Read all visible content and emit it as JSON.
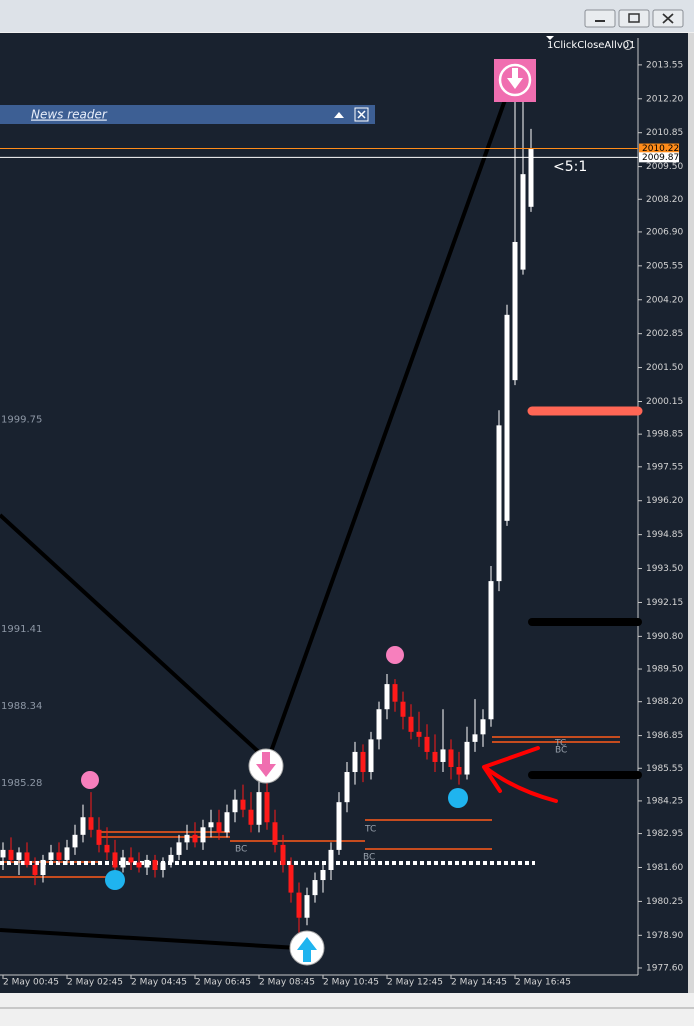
{
  "window": {
    "indicator": "1ClickCloseAllv01",
    "news_reader": "News reader",
    "ratio": "<5:1",
    "level_tags": [
      "BC",
      "TC",
      "BC",
      "TC",
      "BC"
    ]
  },
  "chart_data": {
    "type": "candlestick",
    "categories": [
      "2 May 00:45",
      null,
      null,
      null,
      null,
      null,
      null,
      null,
      "2 May 02:45",
      null,
      null,
      null,
      null,
      null,
      null,
      null,
      "2 May 04:45",
      null,
      null,
      null,
      null,
      null,
      null,
      null,
      "2 May 06:45",
      null,
      null,
      null,
      null,
      null,
      null,
      null,
      "2 May 08:45",
      null,
      null,
      null,
      null,
      null,
      null,
      null,
      "2 May 10:45",
      null,
      null,
      null,
      null,
      null,
      null,
      null,
      "2 May 12:45",
      null,
      null,
      null,
      null,
      null,
      null,
      null,
      "2 May 14:45",
      null,
      null,
      null,
      null,
      null,
      null,
      null,
      "2 May 16:45",
      null,
      null
    ],
    "ohlc": [
      [
        1982.0,
        1982.6,
        1981.5,
        1982.3
      ],
      [
        1982.3,
        1982.8,
        1981.8,
        1981.9
      ],
      [
        1981.9,
        1982.4,
        1981.3,
        1982.2
      ],
      [
        1982.2,
        1982.6,
        1981.6,
        1981.7
      ],
      [
        1981.7,
        1982.0,
        1980.9,
        1981.3
      ],
      [
        1981.3,
        1982.1,
        1981.0,
        1981.9
      ],
      [
        1981.9,
        1982.5,
        1981.7,
        1982.2
      ],
      [
        1982.2,
        1982.6,
        1981.8,
        1981.9
      ],
      [
        1981.9,
        1982.7,
        1981.7,
        1982.4
      ],
      [
        1982.4,
        1983.3,
        1982.1,
        1982.9
      ],
      [
        1982.9,
        1984.1,
        1982.6,
        1983.6
      ],
      [
        1983.6,
        1984.6,
        1982.8,
        1983.1
      ],
      [
        1983.1,
        1983.6,
        1982.2,
        1982.5
      ],
      [
        1982.5,
        1983.2,
        1981.9,
        1982.2
      ],
      [
        1982.2,
        1982.7,
        1981.2,
        1981.6
      ],
      [
        1981.6,
        1982.3,
        1981.4,
        1982.0
      ],
      [
        1982.0,
        1982.4,
        1981.5,
        1981.8
      ],
      [
        1981.8,
        1982.2,
        1981.4,
        1981.6
      ],
      [
        1981.6,
        1982.1,
        1981.3,
        1981.9
      ],
      [
        1981.9,
        1982.1,
        1981.2,
        1981.5
      ],
      [
        1981.5,
        1982.0,
        1981.2,
        1981.8
      ],
      [
        1981.8,
        1982.4,
        1981.6,
        1982.1
      ],
      [
        1982.1,
        1982.9,
        1981.9,
        1982.6
      ],
      [
        1982.6,
        1983.3,
        1982.3,
        1982.9
      ],
      [
        1982.9,
        1983.4,
        1982.4,
        1982.6
      ],
      [
        1982.6,
        1983.5,
        1982.3,
        1983.2
      ],
      [
        1983.2,
        1983.9,
        1982.8,
        1983.4
      ],
      [
        1983.4,
        1983.9,
        1982.7,
        1983.0
      ],
      [
        1983.0,
        1984.1,
        1982.8,
        1983.8
      ],
      [
        1983.8,
        1984.7,
        1983.4,
        1984.3
      ],
      [
        1984.3,
        1984.9,
        1983.6,
        1983.9
      ],
      [
        1983.9,
        1984.6,
        1983.0,
        1983.3
      ],
      [
        1983.3,
        1985.6,
        1983.0,
        1984.6
      ],
      [
        1984.6,
        1985.0,
        1983.1,
        1983.4
      ],
      [
        1983.4,
        1983.9,
        1982.2,
        1982.5
      ],
      [
        1982.5,
        1982.9,
        1981.4,
        1981.7
      ],
      [
        1981.7,
        1982.0,
        1980.2,
        1980.6
      ],
      [
        1980.6,
        1981.0,
        1978.8,
        1979.6
      ],
      [
        1979.6,
        1980.8,
        1979.3,
        1980.5
      ],
      [
        1980.5,
        1981.4,
        1980.2,
        1981.1
      ],
      [
        1981.1,
        1981.8,
        1980.6,
        1981.5
      ],
      [
        1981.5,
        1982.6,
        1981.1,
        1982.3
      ],
      [
        1982.3,
        1984.6,
        1982.1,
        1984.2
      ],
      [
        1984.2,
        1985.8,
        1983.8,
        1985.4
      ],
      [
        1985.4,
        1986.6,
        1984.9,
        1986.2
      ],
      [
        1986.2,
        1986.5,
        1985.0,
        1985.4
      ],
      [
        1985.4,
        1987.0,
        1985.1,
        1986.7
      ],
      [
        1986.7,
        1988.2,
        1986.3,
        1987.9
      ],
      [
        1987.9,
        1989.3,
        1987.5,
        1988.9
      ],
      [
        1988.9,
        1989.1,
        1987.8,
        1988.2
      ],
      [
        1988.2,
        1988.6,
        1987.1,
        1987.6
      ],
      [
        1987.6,
        1988.1,
        1986.7,
        1987.0
      ],
      [
        1987.0,
        1987.8,
        1986.4,
        1986.8
      ],
      [
        1986.8,
        1987.3,
        1985.9,
        1986.2
      ],
      [
        1986.2,
        1986.9,
        1985.4,
        1985.8
      ],
      [
        1985.8,
        1987.9,
        1985.4,
        1986.3
      ],
      [
        1986.3,
        1986.7,
        1985.1,
        1985.6
      ],
      [
        1985.6,
        1986.2,
        1984.9,
        1985.3
      ],
      [
        1985.3,
        1987.2,
        1985.1,
        1986.6
      ],
      [
        1986.6,
        1988.3,
        1986.2,
        1986.9
      ],
      [
        1986.9,
        1987.9,
        1986.4,
        1987.5
      ],
      [
        1987.5,
        1993.6,
        1987.2,
        1993.0
      ],
      [
        1993.0,
        1999.8,
        1992.6,
        1999.2
      ],
      [
        1995.4,
        2004.0,
        1995.2,
        2003.6
      ],
      [
        2001.0,
        2012.1,
        2000.8,
        2006.5
      ],
      [
        2005.4,
        2012.1,
        2005.2,
        2009.2
      ],
      [
        2007.9,
        2011.0,
        2007.7,
        2010.2
      ]
    ],
    "up_color": "#ffffff",
    "down_color": "#ff1a1a",
    "ylim": [
      1977.32,
      2014.62
    ],
    "yticks": [
      2013.55,
      {
        "value": 2012.2,
        "label": "2012.20"
      },
      2010.85,
      {
        "value": 2009.5,
        "label": "2009.50"
      },
      {
        "value": 2008.2,
        "label": "2008.20"
      },
      {
        "value": 2006.9,
        "label": "2006.90"
      },
      2005.55,
      {
        "value": 2004.2,
        "label": "2004.20"
      },
      2002.85,
      {
        "value": 2001.5,
        "label": "2001.50"
      },
      2000.15,
      1998.85,
      1997.55,
      {
        "value": 1996.2,
        "label": "1996.20"
      },
      1994.85,
      {
        "value": 1993.5,
        "label": "1993.50"
      },
      1992.15,
      {
        "value": 1990.8,
        "label": "1990.80"
      },
      {
        "value": 1989.5,
        "label": "1989.50"
      },
      {
        "value": 1988.2,
        "label": "1988.20"
      },
      1986.85,
      1985.55,
      1984.25,
      1982.95,
      {
        "value": 1981.6,
        "label": "1981.60"
      },
      1980.25,
      {
        "value": 1978.9,
        "label": "1978.90"
      },
      {
        "value": 1977.6,
        "label": "1977.60"
      }
    ],
    "price_tags": [
      {
        "value": 2010.22,
        "color": "#ff8c1a"
      },
      {
        "value": 2009.87,
        "color": "#ffffff"
      }
    ],
    "level_labels": [
      1999.75,
      1991.41,
      1988.34,
      1985.28
    ],
    "grid": false
  }
}
